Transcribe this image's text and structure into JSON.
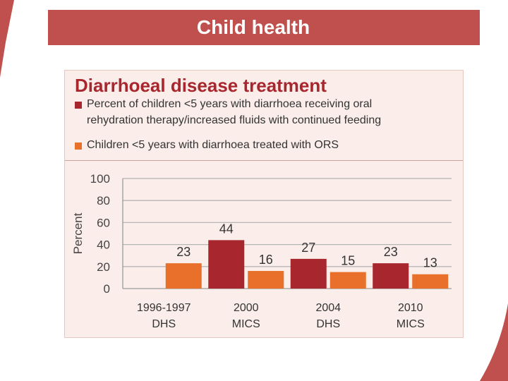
{
  "slide": {
    "title": "Child health"
  },
  "chart_data": {
    "type": "bar",
    "title": "Diarrhoeal disease treatment",
    "ylabel": "Percent",
    "xlabel": "",
    "ylim": [
      0,
      100
    ],
    "yticks": [
      0,
      20,
      40,
      60,
      80,
      100
    ],
    "grid": true,
    "legend_position": "top",
    "categories": [
      {
        "line1": "1996-1997",
        "line2": "DHS"
      },
      {
        "line1": "2000",
        "line2": "MICS"
      },
      {
        "line1": "2004",
        "line2": "DHS"
      },
      {
        "line1": "2010",
        "line2": "MICS"
      }
    ],
    "series": [
      {
        "name": "Percent of children <5 years with diarrhoea receiving oral rehydration therapy/increased fluids with continued feeding",
        "color": "#a8262d",
        "values": [
          null,
          44,
          27,
          23
        ]
      },
      {
        "name": "Children <5 years with diarrhoea treated with ORS",
        "color": "#e8702a",
        "values": [
          23,
          16,
          15,
          13
        ]
      }
    ]
  }
}
